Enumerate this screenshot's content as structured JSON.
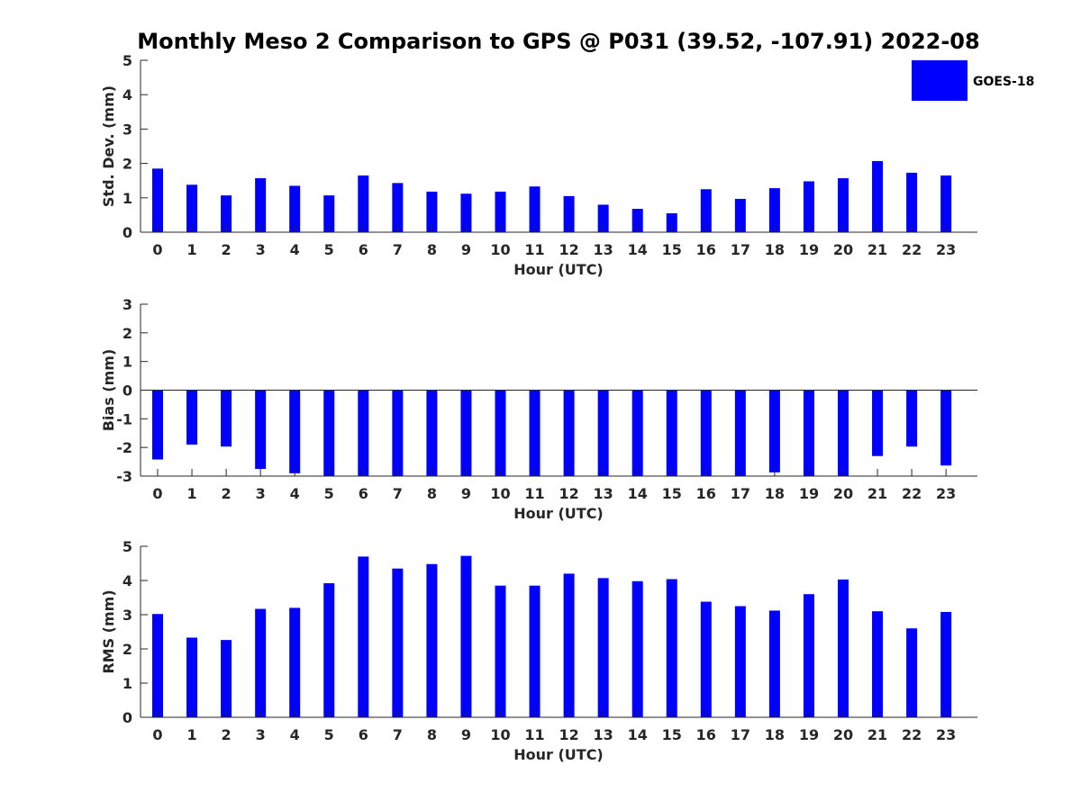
{
  "title": "Monthly Meso 2 Comparison to GPS @ P031 (39.52, -107.91) 2022-08",
  "legend": {
    "label": "GOES-18",
    "color": "#0000ff"
  },
  "chart_data": [
    {
      "type": "bar",
      "xlabel": "Hour (UTC)",
      "ylabel": "Std. Dev. (mm)",
      "categories": [
        "0",
        "1",
        "2",
        "3",
        "4",
        "5",
        "6",
        "7",
        "8",
        "9",
        "10",
        "11",
        "12",
        "13",
        "14",
        "15",
        "16",
        "17",
        "18",
        "19",
        "20",
        "21",
        "22",
        "23"
      ],
      "values": [
        1.85,
        1.38,
        1.07,
        1.57,
        1.35,
        1.07,
        1.65,
        1.43,
        1.18,
        1.12,
        1.18,
        1.33,
        1.05,
        0.8,
        0.68,
        0.55,
        1.25,
        0.97,
        1.28,
        1.48,
        1.57,
        2.07,
        1.73,
        1.65
      ],
      "ylim": [
        0,
        5
      ],
      "yticks": [
        "0",
        "1",
        "2",
        "3",
        "4",
        "5"
      ],
      "series": [
        {
          "name": "GOES-18",
          "color": "#0000ff"
        }
      ]
    },
    {
      "type": "bar",
      "xlabel": "Hour (UTC)",
      "ylabel": "Bias (mm)",
      "categories": [
        "0",
        "1",
        "2",
        "3",
        "4",
        "5",
        "6",
        "7",
        "8",
        "9",
        "10",
        "11",
        "12",
        "13",
        "14",
        "15",
        "16",
        "17",
        "18",
        "19",
        "20",
        "21",
        "22",
        "23"
      ],
      "values": [
        -2.42,
        -1.9,
        -1.97,
        -2.75,
        -2.9,
        -3.0,
        -3.0,
        -3.0,
        -3.0,
        -3.0,
        -3.0,
        -3.0,
        -3.0,
        -3.0,
        -3.0,
        -3.0,
        -3.0,
        -3.0,
        -2.87,
        -3.0,
        -3.0,
        -2.3,
        -1.97,
        -2.63
      ],
      "ylim": [
        -3,
        3
      ],
      "yticks": [
        "-3",
        "-2",
        "-1",
        "0",
        "1",
        "2",
        "3"
      ],
      "series": [
        {
          "name": "GOES-18",
          "color": "#0000ff"
        }
      ]
    },
    {
      "type": "bar",
      "xlabel": "Hour (UTC)",
      "ylabel": "RMS (mm)",
      "categories": [
        "0",
        "1",
        "2",
        "3",
        "4",
        "5",
        "6",
        "7",
        "8",
        "9",
        "10",
        "11",
        "12",
        "13",
        "14",
        "15",
        "16",
        "17",
        "18",
        "19",
        "20",
        "21",
        "22",
        "23"
      ],
      "values": [
        3.02,
        2.33,
        2.26,
        3.17,
        3.2,
        3.92,
        4.7,
        4.35,
        4.48,
        4.72,
        3.85,
        3.85,
        4.2,
        4.07,
        3.98,
        4.04,
        3.38,
        3.25,
        3.12,
        3.6,
        4.03,
        3.1,
        2.6,
        3.08
      ],
      "ylim": [
        0,
        5
      ],
      "yticks": [
        "0",
        "1",
        "2",
        "3",
        "4",
        "5"
      ],
      "series": [
        {
          "name": "GOES-18",
          "color": "#0000ff"
        }
      ]
    }
  ]
}
